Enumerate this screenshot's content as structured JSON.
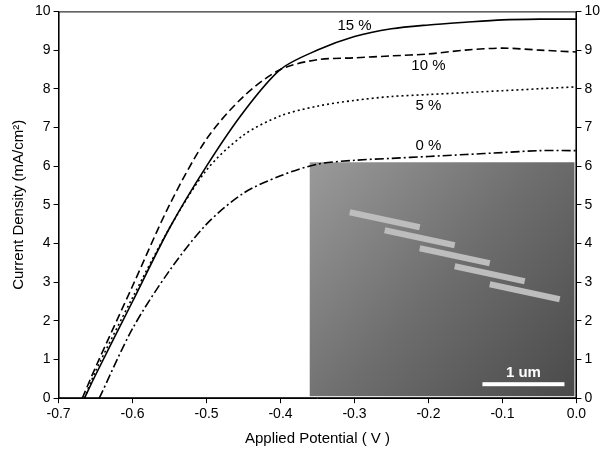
{
  "chart_data": {
    "type": "line",
    "x_label": "Applied Potential ( V )",
    "y_label": "Current Density (mA/cm²)",
    "xlim": [
      -0.7,
      0
    ],
    "xticks": [
      -0.7,
      -0.6,
      -0.5,
      -0.4,
      -0.3,
      -0.2,
      -0.1,
      {
        "value": 0,
        "label": "0.0"
      }
    ],
    "ylim": [
      0,
      10
    ],
    "yticks": [
      0,
      1,
      2,
      3,
      4,
      5,
      6,
      7,
      8,
      9,
      10
    ],
    "y2lim": [
      0,
      10
    ],
    "y2ticks": [
      0,
      1,
      2,
      3,
      4,
      5,
      6,
      7,
      8,
      9,
      10
    ],
    "grid": false,
    "annotations": [
      {
        "text": "1 um"
      }
    ],
    "series": [
      {
        "name": "0 %",
        "color": "#000000",
        "line_style": "dashdot",
        "x": [
          -0.645,
          -0.6,
          -0.55,
          -0.5,
          -0.45,
          -0.4,
          -0.35,
          -0.3,
          -0.25,
          -0.2,
          -0.15,
          -0.1,
          -0.05,
          0
        ],
        "values": [
          0,
          1.8,
          3.3,
          4.5,
          5.3,
          5.75,
          6.05,
          6.15,
          6.2,
          6.25,
          6.3,
          6.35,
          6.4,
          6.4
        ]
      },
      {
        "name": "5 %",
        "color": "#000000",
        "line_style": "dotted",
        "x": [
          -0.665,
          -0.65,
          -0.6,
          -0.55,
          -0.5,
          -0.45,
          -0.4,
          -0.35,
          -0.3,
          -0.25,
          -0.2,
          -0.15,
          -0.1,
          -0.05,
          0
        ],
        "values": [
          0,
          0.7,
          2.6,
          4.4,
          5.9,
          6.8,
          7.3,
          7.55,
          7.7,
          7.8,
          7.85,
          7.9,
          7.95,
          8.0,
          8.05
        ]
      },
      {
        "name": "10 %",
        "color": "#000000",
        "line_style": "dashed",
        "x": [
          -0.668,
          -0.65,
          -0.6,
          -0.55,
          -0.5,
          -0.45,
          -0.4,
          -0.35,
          -0.3,
          -0.25,
          -0.2,
          -0.15,
          -0.1,
          -0.05,
          0
        ],
        "values": [
          0,
          0.8,
          2.9,
          5.0,
          6.7,
          7.8,
          8.5,
          8.75,
          8.8,
          8.85,
          8.9,
          9.0,
          9.05,
          9.0,
          8.95
        ]
      },
      {
        "name": "15 %",
        "color": "#000000",
        "line_style": "solid",
        "x": [
          -0.665,
          -0.65,
          -0.6,
          -0.55,
          -0.5,
          -0.45,
          -0.4,
          -0.35,
          -0.3,
          -0.25,
          -0.2,
          -0.15,
          -0.1,
          -0.05,
          0
        ],
        "values": [
          0,
          0.6,
          2.5,
          4.4,
          6.0,
          7.4,
          8.5,
          9.0,
          9.35,
          9.55,
          9.65,
          9.72,
          9.78,
          9.8,
          9.8
        ]
      }
    ]
  }
}
